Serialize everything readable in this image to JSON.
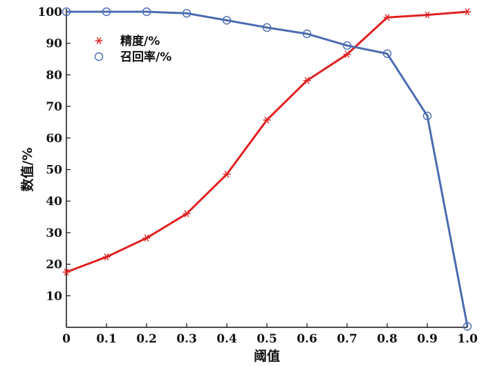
{
  "chart_data": {
    "type": "line",
    "x": [
      0,
      0.1,
      0.2,
      0.3,
      0.4,
      0.5,
      0.6,
      0.7,
      0.8,
      0.9,
      1.0
    ],
    "xlabel": "阈值",
    "ylabel": "数值/%",
    "xlim": [
      0,
      1.0
    ],
    "ylim": [
      0,
      100
    ],
    "xticks": [
      "0",
      "0.1",
      "0.2",
      "0.3",
      "0.4",
      "0.5",
      "0.6",
      "0.7",
      "0.8",
      "0.9",
      "1.0"
    ],
    "yticks": [
      "10",
      "20",
      "30",
      "40",
      "50",
      "60",
      "70",
      "80",
      "90",
      "100"
    ],
    "grid": false,
    "legend_position": "top-left",
    "series": [
      {
        "name": "精度/%",
        "color": "#e02020",
        "marker": "asterisk",
        "values": [
          17.5,
          22.3,
          28.3,
          36.0,
          48.5,
          65.7,
          78.2,
          86.5,
          98.2,
          99.0,
          100.0
        ]
      },
      {
        "name": "召回率/%",
        "color": "#4a6bb0",
        "marker": "circle",
        "values": [
          100.0,
          100.0,
          100.0,
          99.5,
          97.3,
          95.0,
          93.0,
          89.3,
          86.7,
          67.0,
          0.3
        ]
      }
    ]
  }
}
